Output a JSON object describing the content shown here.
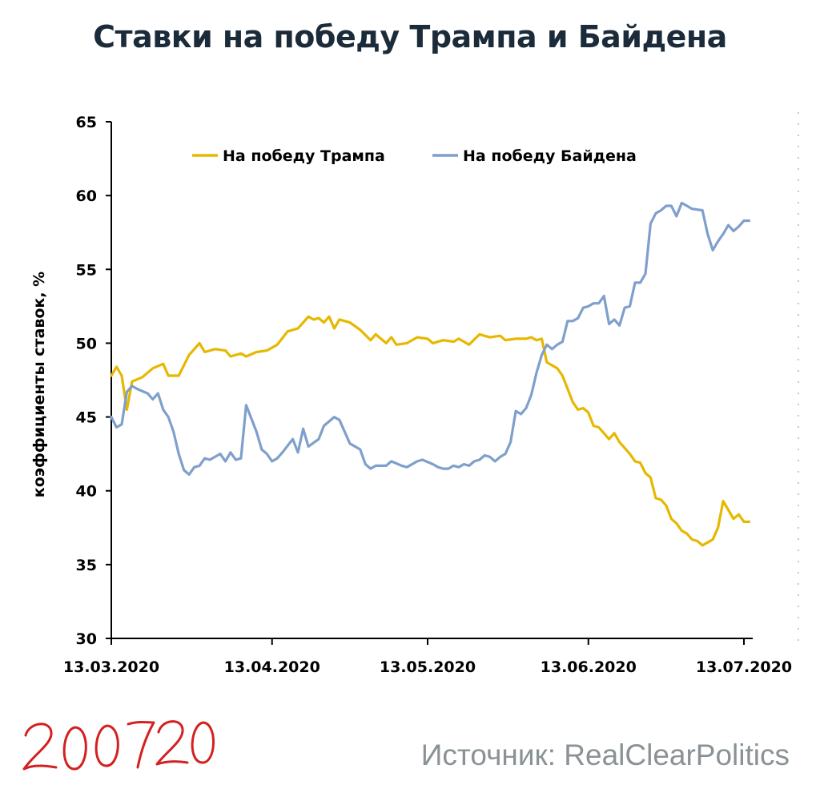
{
  "title": "Ставки на победу Трампа и Байдена",
  "source": "Источник: RealClearPolitics",
  "stamp_text": "200720",
  "colors": {
    "trump": "#e6b800",
    "biden": "#7f9fcc",
    "stamp": "#d42020",
    "title": "#1c2b3a"
  },
  "chart_data": {
    "type": "line",
    "ylabel": "коэффициенты ставок, %",
    "ylim": [
      30,
      65
    ],
    "yticks": [
      30,
      35,
      40,
      45,
      50,
      55,
      60,
      65
    ],
    "xlim": [
      "2020-03-13",
      "2020-07-13"
    ],
    "xticks": [
      "13.03.2020",
      "13.04.2020",
      "13.05.2020",
      "13.06.2020",
      "13.07.2020"
    ],
    "grid": false,
    "legend_position": "top",
    "series": [
      {
        "name": "На победу Трампа",
        "color": "#e6b800",
        "points": [
          [
            "2020-03-13",
            47.8
          ],
          [
            "2020-03-14",
            48.4
          ],
          [
            "2020-03-15",
            47.8
          ],
          [
            "2020-03-16",
            45.5
          ],
          [
            "2020-03-17",
            47.4
          ],
          [
            "2020-03-19",
            47.7
          ],
          [
            "2020-03-21",
            48.3
          ],
          [
            "2020-03-23",
            48.6
          ],
          [
            "2020-03-24",
            47.8
          ],
          [
            "2020-03-26",
            47.8
          ],
          [
            "2020-03-28",
            49.2
          ],
          [
            "2020-03-30",
            50.0
          ],
          [
            "2020-03-31",
            49.4
          ],
          [
            "2020-04-02",
            49.6
          ],
          [
            "2020-04-04",
            49.5
          ],
          [
            "2020-04-05",
            49.1
          ],
          [
            "2020-04-07",
            49.3
          ],
          [
            "2020-04-08",
            49.1
          ],
          [
            "2020-04-10",
            49.4
          ],
          [
            "2020-04-12",
            49.5
          ],
          [
            "2020-04-14",
            49.9
          ],
          [
            "2020-04-16",
            50.8
          ],
          [
            "2020-04-18",
            51.0
          ],
          [
            "2020-04-20",
            51.8
          ],
          [
            "2020-04-21",
            51.6
          ],
          [
            "2020-04-22",
            51.7
          ],
          [
            "2020-04-23",
            51.4
          ],
          [
            "2020-04-24",
            51.8
          ],
          [
            "2020-04-25",
            51.0
          ],
          [
            "2020-04-26",
            51.6
          ],
          [
            "2020-04-28",
            51.4
          ],
          [
            "2020-04-30",
            50.9
          ],
          [
            "2020-05-02",
            50.2
          ],
          [
            "2020-05-03",
            50.6
          ],
          [
            "2020-05-05",
            50.0
          ],
          [
            "2020-05-06",
            50.4
          ],
          [
            "2020-05-07",
            49.9
          ],
          [
            "2020-05-09",
            50.0
          ],
          [
            "2020-05-11",
            50.4
          ],
          [
            "2020-05-13",
            50.3
          ],
          [
            "2020-05-14",
            50.0
          ],
          [
            "2020-05-16",
            50.2
          ],
          [
            "2020-05-18",
            50.1
          ],
          [
            "2020-05-19",
            50.3
          ],
          [
            "2020-05-21",
            49.9
          ],
          [
            "2020-05-23",
            50.6
          ],
          [
            "2020-05-25",
            50.4
          ],
          [
            "2020-05-27",
            50.5
          ],
          [
            "2020-05-28",
            50.2
          ],
          [
            "2020-05-30",
            50.3
          ],
          [
            "2020-06-01",
            50.3
          ],
          [
            "2020-06-02",
            50.4
          ],
          [
            "2020-06-03",
            50.2
          ],
          [
            "2020-06-04",
            50.3
          ],
          [
            "2020-06-05",
            48.7
          ],
          [
            "2020-06-07",
            48.3
          ],
          [
            "2020-06-08",
            47.8
          ],
          [
            "2020-06-10",
            46.0
          ],
          [
            "2020-06-11",
            45.5
          ],
          [
            "2020-06-12",
            45.6
          ],
          [
            "2020-06-13",
            45.3
          ],
          [
            "2020-06-14",
            44.4
          ],
          [
            "2020-06-15",
            44.3
          ],
          [
            "2020-06-17",
            43.5
          ],
          [
            "2020-06-18",
            43.9
          ],
          [
            "2020-06-19",
            43.3
          ],
          [
            "2020-06-21",
            42.5
          ],
          [
            "2020-06-22",
            42.0
          ],
          [
            "2020-06-23",
            41.9
          ],
          [
            "2020-06-24",
            41.2
          ],
          [
            "2020-06-25",
            40.9
          ],
          [
            "2020-06-26",
            39.5
          ],
          [
            "2020-06-27",
            39.4
          ],
          [
            "2020-06-28",
            39.0
          ],
          [
            "2020-06-29",
            38.1
          ],
          [
            "2020-06-30",
            37.8
          ],
          [
            "2020-07-01",
            37.3
          ],
          [
            "2020-07-02",
            37.1
          ],
          [
            "2020-07-03",
            36.7
          ],
          [
            "2020-07-04",
            36.6
          ],
          [
            "2020-07-05",
            36.3
          ],
          [
            "2020-07-06",
            36.5
          ],
          [
            "2020-07-07",
            36.7
          ],
          [
            "2020-07-08",
            37.5
          ],
          [
            "2020-07-09",
            39.3
          ],
          [
            "2020-07-10",
            38.7
          ],
          [
            "2020-07-11",
            38.1
          ],
          [
            "2020-07-12",
            38.4
          ],
          [
            "2020-07-13",
            37.9
          ],
          [
            "2020-07-14",
            37.9
          ]
        ]
      },
      {
        "name": "На победу Байдена",
        "color": "#7f9fcc",
        "points": [
          [
            "2020-03-13",
            45.0
          ],
          [
            "2020-03-14",
            44.3
          ],
          [
            "2020-03-15",
            44.5
          ],
          [
            "2020-03-16",
            46.7
          ],
          [
            "2020-03-17",
            47.1
          ],
          [
            "2020-03-18",
            46.9
          ],
          [
            "2020-03-20",
            46.6
          ],
          [
            "2020-03-21",
            46.2
          ],
          [
            "2020-03-22",
            46.6
          ],
          [
            "2020-03-23",
            45.5
          ],
          [
            "2020-03-24",
            45.0
          ],
          [
            "2020-03-25",
            44.0
          ],
          [
            "2020-03-26",
            42.5
          ],
          [
            "2020-03-27",
            41.4
          ],
          [
            "2020-03-28",
            41.1
          ],
          [
            "2020-03-29",
            41.6
          ],
          [
            "2020-03-30",
            41.7
          ],
          [
            "2020-03-31",
            42.2
          ],
          [
            "2020-04-01",
            42.1
          ],
          [
            "2020-04-03",
            42.5
          ],
          [
            "2020-04-04",
            42.0
          ],
          [
            "2020-04-05",
            42.6
          ],
          [
            "2020-04-06",
            42.1
          ],
          [
            "2020-04-07",
            42.2
          ],
          [
            "2020-04-08",
            45.8
          ],
          [
            "2020-04-10",
            44.0
          ],
          [
            "2020-04-11",
            42.8
          ],
          [
            "2020-04-12",
            42.5
          ],
          [
            "2020-04-13",
            42.0
          ],
          [
            "2020-04-14",
            42.2
          ],
          [
            "2020-04-15",
            42.6
          ],
          [
            "2020-04-17",
            43.5
          ],
          [
            "2020-04-18",
            42.6
          ],
          [
            "2020-04-19",
            44.2
          ],
          [
            "2020-04-20",
            43.0
          ],
          [
            "2020-04-22",
            43.5
          ],
          [
            "2020-04-23",
            44.4
          ],
          [
            "2020-04-25",
            45.0
          ],
          [
            "2020-04-26",
            44.8
          ],
          [
            "2020-04-28",
            43.2
          ],
          [
            "2020-04-30",
            42.8
          ],
          [
            "2020-05-01",
            41.8
          ],
          [
            "2020-05-02",
            41.5
          ],
          [
            "2020-05-03",
            41.7
          ],
          [
            "2020-05-05",
            41.7
          ],
          [
            "2020-05-06",
            42.0
          ],
          [
            "2020-05-08",
            41.7
          ],
          [
            "2020-05-09",
            41.6
          ],
          [
            "2020-05-11",
            42.0
          ],
          [
            "2020-05-12",
            42.1
          ],
          [
            "2020-05-14",
            41.8
          ],
          [
            "2020-05-15",
            41.6
          ],
          [
            "2020-05-16",
            41.5
          ],
          [
            "2020-05-17",
            41.5
          ],
          [
            "2020-05-18",
            41.7
          ],
          [
            "2020-05-19",
            41.6
          ],
          [
            "2020-05-20",
            41.8
          ],
          [
            "2020-05-21",
            41.7
          ],
          [
            "2020-05-22",
            42.0
          ],
          [
            "2020-05-23",
            42.1
          ],
          [
            "2020-05-24",
            42.4
          ],
          [
            "2020-05-25",
            42.3
          ],
          [
            "2020-05-26",
            42.0
          ],
          [
            "2020-05-27",
            42.3
          ],
          [
            "2020-05-28",
            42.5
          ],
          [
            "2020-05-29",
            43.3
          ],
          [
            "2020-05-30",
            45.4
          ],
          [
            "2020-05-31",
            45.2
          ],
          [
            "2020-06-01",
            45.6
          ],
          [
            "2020-06-02",
            46.5
          ],
          [
            "2020-06-03",
            48.0
          ],
          [
            "2020-06-04",
            49.2
          ],
          [
            "2020-06-05",
            49.9
          ],
          [
            "2020-06-06",
            49.6
          ],
          [
            "2020-06-07",
            49.9
          ],
          [
            "2020-06-08",
            50.1
          ],
          [
            "2020-06-09",
            51.5
          ],
          [
            "2020-06-10",
            51.5
          ],
          [
            "2020-06-11",
            51.7
          ],
          [
            "2020-06-12",
            52.4
          ],
          [
            "2020-06-13",
            52.5
          ],
          [
            "2020-06-14",
            52.7
          ],
          [
            "2020-06-15",
            52.7
          ],
          [
            "2020-06-16",
            53.2
          ],
          [
            "2020-06-17",
            51.3
          ],
          [
            "2020-06-18",
            51.6
          ],
          [
            "2020-06-19",
            51.2
          ],
          [
            "2020-06-20",
            52.4
          ],
          [
            "2020-06-21",
            52.5
          ],
          [
            "2020-06-22",
            54.1
          ],
          [
            "2020-06-23",
            54.1
          ],
          [
            "2020-06-24",
            54.7
          ],
          [
            "2020-06-25",
            58.1
          ],
          [
            "2020-06-26",
            58.8
          ],
          [
            "2020-06-27",
            59.0
          ],
          [
            "2020-06-28",
            59.3
          ],
          [
            "2020-06-29",
            59.3
          ],
          [
            "2020-06-30",
            58.6
          ],
          [
            "2020-07-01",
            59.5
          ],
          [
            "2020-07-02",
            59.3
          ],
          [
            "2020-07-03",
            59.1
          ],
          [
            "2020-07-05",
            59.0
          ],
          [
            "2020-07-06",
            57.4
          ],
          [
            "2020-07-07",
            56.3
          ],
          [
            "2020-07-08",
            56.9
          ],
          [
            "2020-07-09",
            57.4
          ],
          [
            "2020-07-10",
            58.0
          ],
          [
            "2020-07-11",
            57.6
          ],
          [
            "2020-07-12",
            57.9
          ],
          [
            "2020-07-13",
            58.3
          ],
          [
            "2020-07-14",
            58.3
          ]
        ]
      }
    ]
  }
}
